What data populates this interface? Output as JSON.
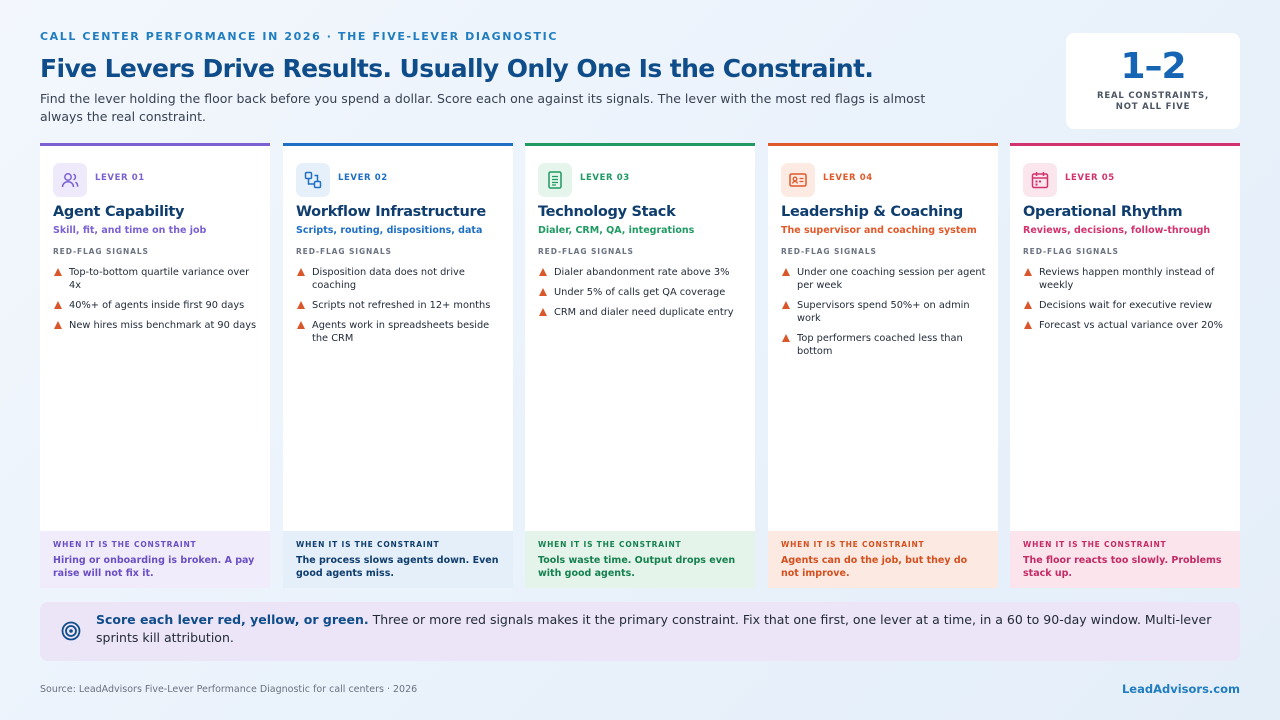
{
  "header": {
    "eyebrow": "CALL CENTER PERFORMANCE IN 2026 · THE FIVE-LEVER DIAGNOSTIC",
    "title": "Five Levers Drive Results. Usually Only One Is the Constraint.",
    "subtitle": "Find the lever holding the floor back before you spend a dollar. Score each one against its signals. The lever with the most red flags is almost always the real constraint."
  },
  "stat": {
    "value": "1–2",
    "label_line1": "REAL CONSTRAINTS,",
    "label_line2": "NOT ALL FIVE"
  },
  "signals_heading": "RED-FLAG SIGNALS",
  "constraint_heading": "WHEN IT IS THE CONSTRAINT",
  "levers": [
    {
      "tag": "LEVER 01",
      "title": "Agent Capability",
      "subtitle": "Skill, fit, and time on the job",
      "icon": "users-icon",
      "accent": "#7b61d1",
      "icon_bg": "#efeafb",
      "bottom_bg": "#f1ecfb",
      "bottom_text_color": "#6a4fc4",
      "signals": [
        "Top-to-bottom quartile variance over 4x",
        "40%+ of agents inside first 90 days",
        "New hires miss benchmark at 90 days"
      ],
      "constraint": "Hiring or onboarding is broken. A pay raise will not fix it."
    },
    {
      "tag": "LEVER 02",
      "title": "Workflow Infrastructure",
      "subtitle": "Scripts, routing, dispositions, data",
      "icon": "workflow-icon",
      "accent": "#1f6fc4",
      "icon_bg": "#e6f0fb",
      "bottom_bg": "#e5eff9",
      "bottom_text_color": "#0f3d6e",
      "signals": [
        "Disposition data does not drive coaching",
        "Scripts not refreshed in 12+ months",
        "Agents work in spreadsheets beside the CRM"
      ],
      "constraint": "The process slows agents down. Even good agents miss."
    },
    {
      "tag": "LEVER 03",
      "title": "Technology Stack",
      "subtitle": "Dialer, CRM, QA, integrations",
      "icon": "document-icon",
      "accent": "#1f9a62",
      "icon_bg": "#e5f5ec",
      "bottom_bg": "#e4f4ea",
      "bottom_text_color": "#16804f",
      "signals": [
        "Dialer abandonment rate above 3%",
        "Under 5% of calls get QA coverage",
        "CRM and dialer need duplicate entry"
      ],
      "constraint": "Tools waste time. Output drops even with good agents."
    },
    {
      "tag": "LEVER 04",
      "title": "Leadership & Coaching",
      "subtitle": "The supervisor and coaching system",
      "icon": "id-card-icon",
      "accent": "#e0592a",
      "icon_bg": "#fdebe3",
      "bottom_bg": "#fbe9e2",
      "bottom_text_color": "#d4501f",
      "signals": [
        "Under one coaching session per agent per week",
        "Supervisors spend 50%+ on admin work",
        "Top performers coached less than bottom"
      ],
      "constraint": "Agents can do the job, but they do not improve."
    },
    {
      "tag": "LEVER 05",
      "title": "Operational Rhythm",
      "subtitle": "Reviews, decisions, follow-through",
      "icon": "calendar-icon",
      "accent": "#d2336e",
      "icon_bg": "#fce6ee",
      "bottom_bg": "#fbe4ec",
      "bottom_text_color": "#c42a64",
      "signals": [
        "Reviews happen monthly instead of weekly",
        "Decisions wait for executive review",
        "Forecast vs actual variance over 20%"
      ],
      "constraint": "The floor reacts too slowly. Problems stack up."
    }
  ],
  "callout": {
    "icon": "target-icon",
    "strong": "Score each lever red, yellow, or green.",
    "text": " Three or more red signals makes it the primary constraint. Fix that one first, one lever at a time, in a 60 to 90-day window. Multi-lever sprints kill attribution."
  },
  "footer": {
    "source": "Source: LeadAdvisors Five-Lever Performance Diagnostic for call centers · 2026",
    "brand": "LeadAdvisors.com"
  }
}
